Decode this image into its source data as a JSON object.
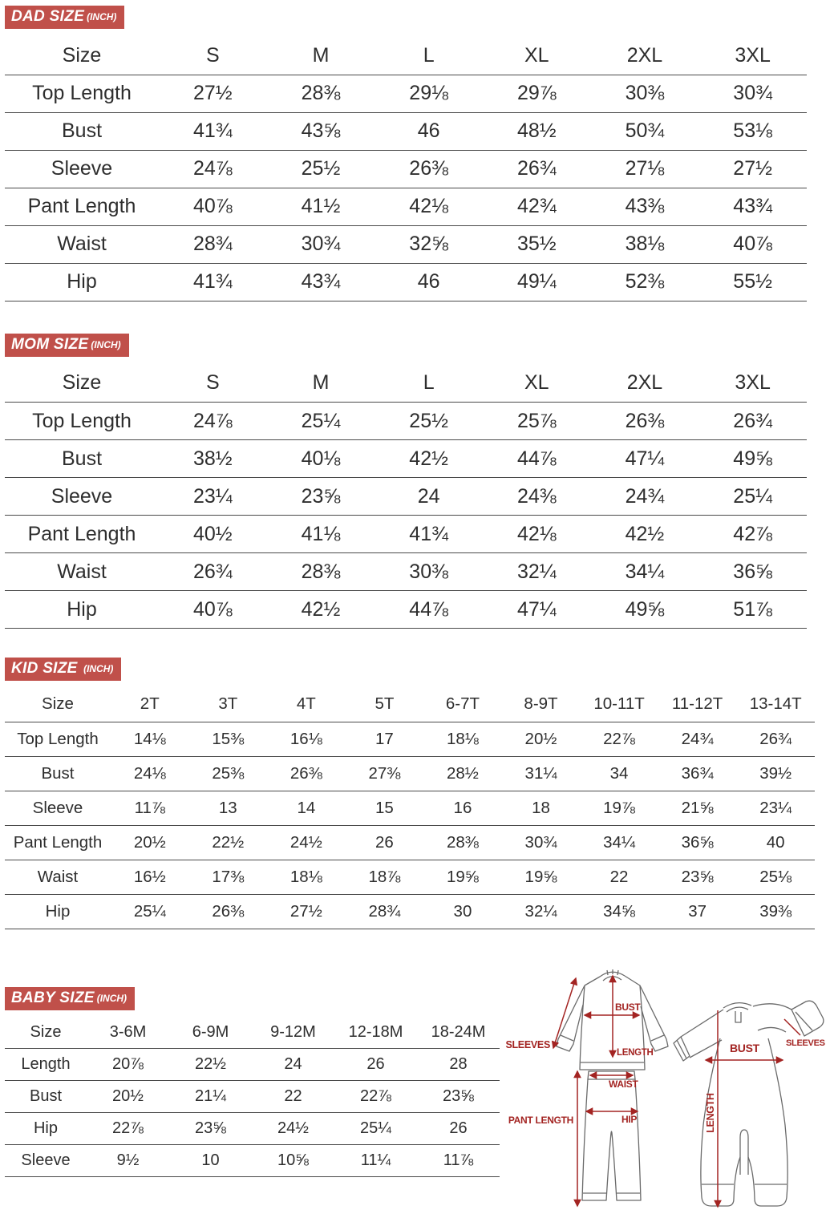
{
  "colors": {
    "badge_red": "#c0504a",
    "diagram_red": "#a32422",
    "text": "#2e2e2e",
    "rule_line": "#4a4a4a"
  },
  "tables": {
    "dad": {
      "badge_label": "DAD SIZE",
      "unit_label": "(INCH)",
      "header": [
        "Size",
        "S",
        "M",
        "L",
        "XL",
        "2XL",
        "3XL"
      ],
      "rows": [
        [
          "Top Length",
          "27½",
          "28⅜",
          "29⅛",
          "29⅞",
          "30⅜",
          "30¾"
        ],
        [
          "Bust",
          "41¾",
          "43⅝",
          "46",
          "48½",
          "50¾",
          "53⅛"
        ],
        [
          "Sleeve",
          "24⅞",
          "25½",
          "26⅜",
          "26¾",
          "27⅛",
          "27½"
        ],
        [
          "Pant Length",
          "40⅞",
          "41½",
          "42⅛",
          "42¾",
          "43⅜",
          "43¾"
        ],
        [
          "Waist",
          "28¾",
          "30¾",
          "32⅝",
          "35½",
          "38⅛",
          "40⅞"
        ],
        [
          "Hip",
          "41¾",
          "43¾",
          "46",
          "49¼",
          "52⅜",
          "55½"
        ]
      ]
    },
    "mom": {
      "badge_label": "MOM SIZE",
      "unit_label": "(INCH)",
      "header": [
        "Size",
        "S",
        "M",
        "L",
        "XL",
        "2XL",
        "3XL"
      ],
      "rows": [
        [
          "Top Length",
          "24⅞",
          "25¼",
          "25½",
          "25⅞",
          "26⅜",
          "26¾"
        ],
        [
          "Bust",
          "38½",
          "40⅛",
          "42½",
          "44⅞",
          "47¼",
          "49⅝"
        ],
        [
          "Sleeve",
          "23¼",
          "23⅝",
          "24",
          "24⅜",
          "24¾",
          "25¼"
        ],
        [
          "Pant Length",
          "40½",
          "41⅛",
          "41¾",
          "42⅛",
          "42½",
          "42⅞"
        ],
        [
          "Waist",
          "26¾",
          "28⅜",
          "30⅜",
          "32¼",
          "34¼",
          "36⅝"
        ],
        [
          "Hip",
          "40⅞",
          "42½",
          "44⅞",
          "47¼",
          "49⅝",
          "51⅞"
        ]
      ]
    },
    "kid": {
      "badge_label": "KID SIZE",
      "unit_label": "(INCH)",
      "header": [
        "Size",
        "2T",
        "3T",
        "4T",
        "5T",
        "6-7T",
        "8-9T",
        "10-11T",
        "11-12T",
        "13-14T"
      ],
      "rows": [
        [
          "Top Length",
          "14⅛",
          "15⅜",
          "16⅛",
          "17",
          "18⅛",
          "20½",
          "22⅞",
          "24¾",
          "26¾"
        ],
        [
          "Bust",
          "24⅛",
          "25⅜",
          "26⅜",
          "27⅜",
          "28½",
          "31¼",
          "34",
          "36¾",
          "39½"
        ],
        [
          "Sleeve",
          "11⅞",
          "13",
          "14",
          "15",
          "16",
          "18",
          "19⅞",
          "21⅝",
          "23¼"
        ],
        [
          "Pant Length",
          "20½",
          "22½",
          "24½",
          "26",
          "28⅜",
          "30¾",
          "34¼",
          "36⅝",
          "40"
        ],
        [
          "Waist",
          "16½",
          "17⅜",
          "18⅛",
          "18⅞",
          "19⅝",
          "19⅝",
          "22",
          "23⅝",
          "25⅛"
        ],
        [
          "Hip",
          "25¼",
          "26⅜",
          "27½",
          "28¾",
          "30",
          "32¼",
          "34⅝",
          "37",
          "39⅜"
        ]
      ]
    },
    "baby": {
      "badge_label": "BABY SIZE",
      "unit_label": "(INCH)",
      "header": [
        "Size",
        "3-6M",
        "6-9M",
        "9-12M",
        "12-18M",
        "18-24M"
      ],
      "rows": [
        [
          "Length",
          "20⅞",
          "22½",
          "24",
          "26",
          "28"
        ],
        [
          "Bust",
          "20½",
          "21¼",
          "22",
          "22⅞",
          "23⅝"
        ],
        [
          "Hip",
          "22⅞",
          "23⅝",
          "24½",
          "25¼",
          "26"
        ],
        [
          "Sleeve",
          "9½",
          "10",
          "10⅝",
          "11¼",
          "11⅞"
        ]
      ]
    }
  },
  "diagram": {
    "top": {
      "sleeves": "SLEEVES",
      "bust": "BUST",
      "length": "LENGTH"
    },
    "pants": {
      "waist": "WAIST",
      "hip": "HIP",
      "pant_length": "PANT LENGTH"
    },
    "romper": {
      "bust": "BUST",
      "length": "LENGTH",
      "sleeves": "SLEEVES"
    }
  }
}
